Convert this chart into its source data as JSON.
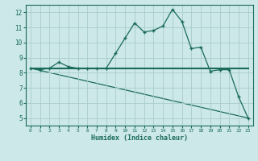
{
  "line1_x": [
    0,
    1,
    2,
    3,
    4,
    5,
    6,
    7,
    8,
    9,
    10,
    11,
    12,
    13,
    14,
    15,
    16,
    17,
    18,
    19,
    20,
    21,
    22,
    23
  ],
  "line1_y": [
    8.3,
    8.2,
    8.3,
    8.7,
    8.4,
    8.3,
    8.3,
    8.3,
    8.3,
    9.3,
    10.3,
    11.3,
    10.7,
    10.8,
    11.1,
    12.2,
    11.4,
    9.6,
    9.7,
    8.1,
    8.2,
    8.2,
    6.4,
    5.0
  ],
  "line2_x": [
    0,
    23
  ],
  "line2_y": [
    8.3,
    8.3
  ],
  "line3_x": [
    0,
    23
  ],
  "line3_y": [
    8.3,
    5.0
  ],
  "color": "#1a6b5a",
  "bg_color": "#cce8e8",
  "grid_color": "#aacccc",
  "xlabel": "Humidex (Indice chaleur)",
  "xlim": [
    -0.5,
    23.5
  ],
  "ylim": [
    4.5,
    12.5
  ],
  "yticks": [
    5,
    6,
    7,
    8,
    9,
    10,
    11,
    12
  ],
  "xticks": [
    0,
    1,
    2,
    3,
    4,
    5,
    6,
    7,
    8,
    9,
    10,
    11,
    12,
    13,
    14,
    15,
    16,
    17,
    18,
    19,
    20,
    21,
    22,
    23
  ]
}
